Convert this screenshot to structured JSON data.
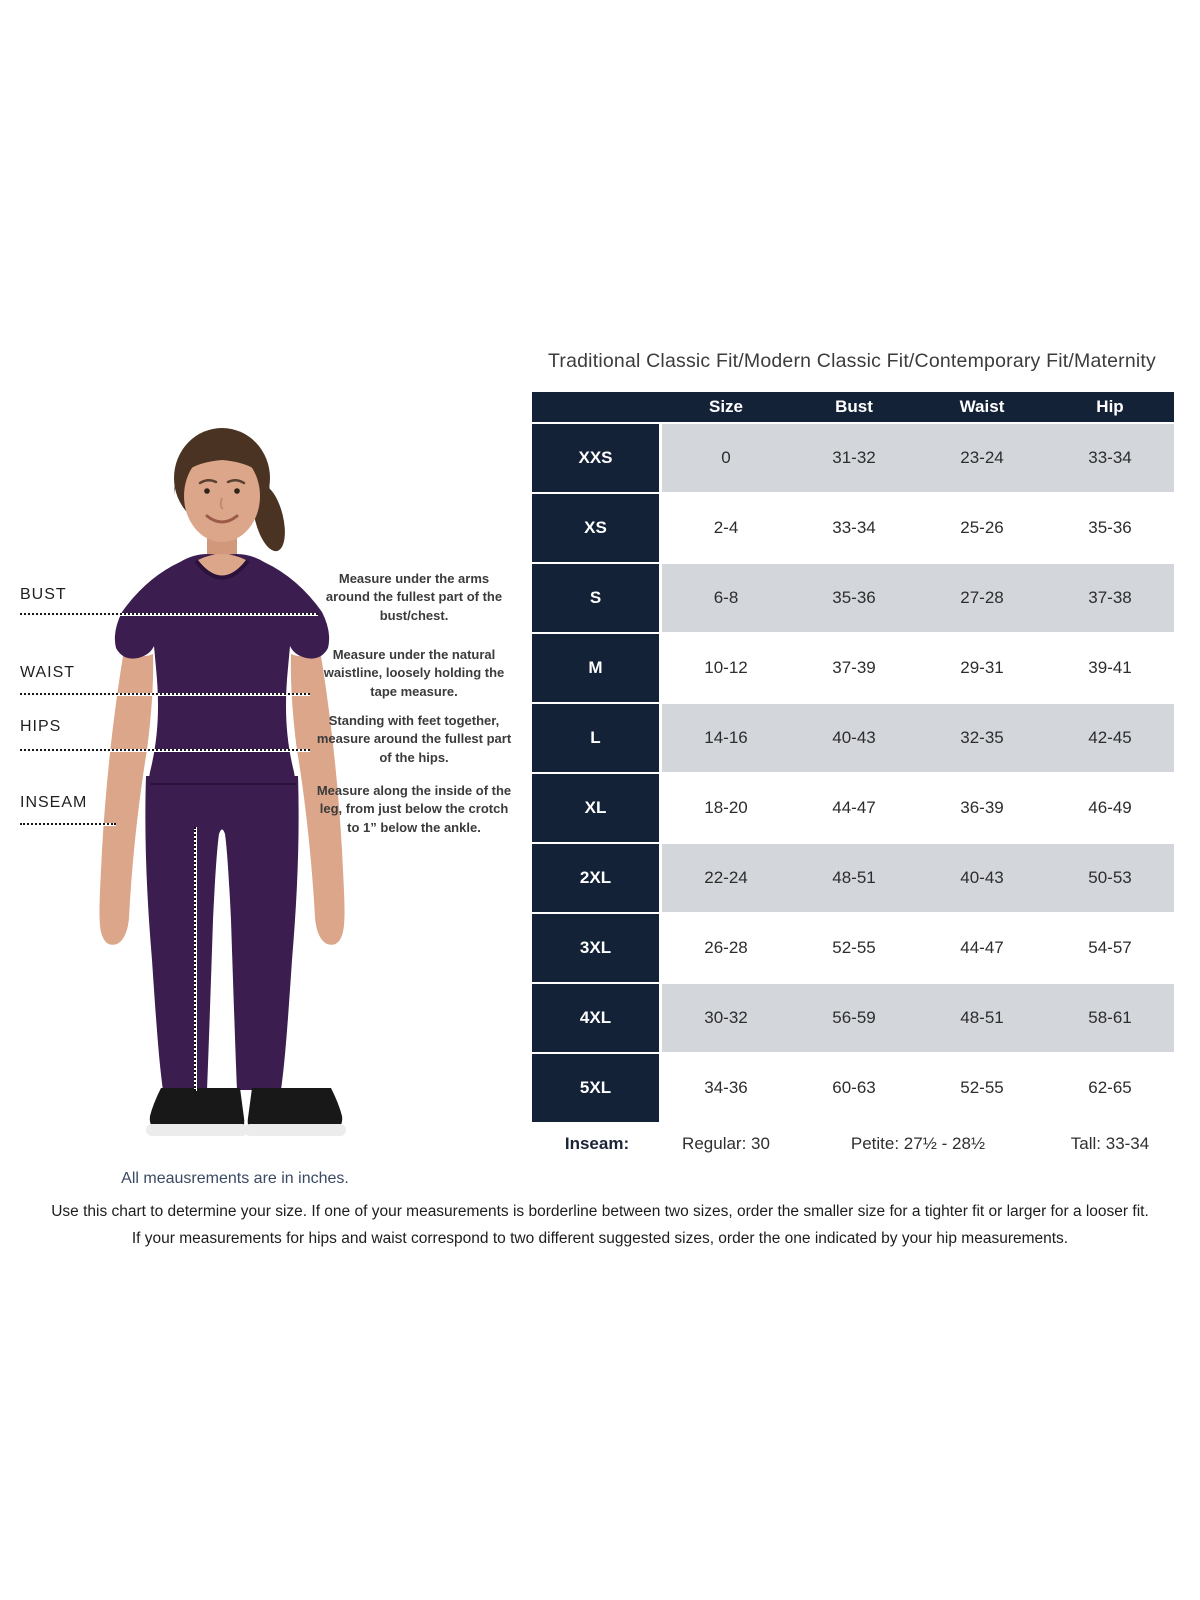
{
  "page": {
    "title": "Traditional Classic Fit/Modern Classic Fit/Contemporary Fit/Maternity",
    "caption": "All meausrements are in inches.",
    "footer_line1": "Use this chart to determine your size. If one of your measurements is borderline between two sizes, order the smaller size for a tighter fit or larger for a looser fit.",
    "footer_line2": "If your measurements for hips and waist correspond to two different suggested sizes, order the one indicated by your hip measurements."
  },
  "measure_guide": {
    "labels": [
      "BUST",
      "WAIST",
      "HIPS",
      "INSEAM"
    ],
    "instructions": [
      "Measure under the arms around the fullest part of the bust/chest.",
      "Measure under the natural waistline, loosely holding the tape measure.",
      "Standing with feet together, measure around the fullest part of the hips.",
      "Measure along the inside of the leg, from just below the crotch to 1” below the ankle."
    ]
  },
  "chart_data": {
    "type": "table",
    "title": "Traditional Classic Fit/Modern Classic Fit/Contemporary Fit/Maternity",
    "columns": [
      "Size",
      "Bust",
      "Waist",
      "Hip"
    ],
    "rows": [
      {
        "label": "XXS",
        "values": [
          "0",
          "31-32",
          "23-24",
          "33-34"
        ]
      },
      {
        "label": "XS",
        "values": [
          "2-4",
          "33-34",
          "25-26",
          "35-36"
        ]
      },
      {
        "label": "S",
        "values": [
          "6-8",
          "35-36",
          "27-28",
          "37-38"
        ]
      },
      {
        "label": "M",
        "values": [
          "10-12",
          "37-39",
          "29-31",
          "39-41"
        ]
      },
      {
        "label": "L",
        "values": [
          "14-16",
          "40-43",
          "32-35",
          "42-45"
        ]
      },
      {
        "label": "XL",
        "values": [
          "18-20",
          "44-47",
          "36-39",
          "46-49"
        ]
      },
      {
        "label": "2XL",
        "values": [
          "22-24",
          "48-51",
          "40-43",
          "50-53"
        ]
      },
      {
        "label": "3XL",
        "values": [
          "26-28",
          "52-55",
          "44-47",
          "54-57"
        ]
      },
      {
        "label": "4XL",
        "values": [
          "30-32",
          "56-59",
          "48-51",
          "58-61"
        ]
      },
      {
        "label": "5XL",
        "values": [
          "34-36",
          "60-63",
          "52-55",
          "62-65"
        ]
      }
    ],
    "inseam_row": {
      "label": "Inseam:",
      "values": [
        "Regular: 30",
        "Petite: 27½ - 28½",
        "Tall: 33-34"
      ]
    }
  },
  "colors": {
    "header_navy": "#142238",
    "row_gray": "#d3d6db",
    "scrub_purple": "#3b1e4f",
    "caption_blue": "#3a4a63"
  }
}
